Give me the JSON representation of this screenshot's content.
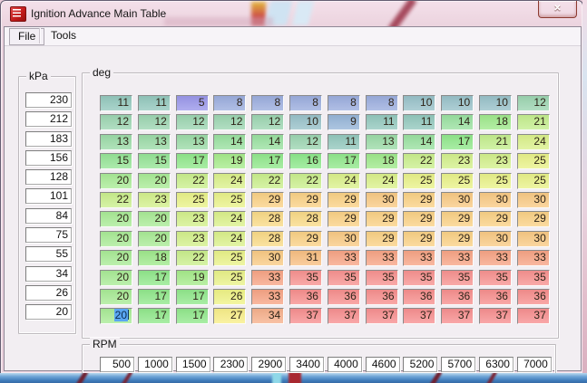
{
  "window": {
    "title": "Ignition Advance Main Table",
    "close_glyph": "✕"
  },
  "menu": {
    "items": [
      "File",
      "Tools"
    ]
  },
  "table": {
    "y_axis_label": "kPa",
    "x_axis_label": "RPM",
    "cells_unit_label": "deg",
    "kpa_values": [
      230,
      212,
      183,
      156,
      128,
      101,
      84,
      75,
      55,
      34,
      26,
      20
    ],
    "rpm_values": [
      500,
      1000,
      1500,
      2300,
      2900,
      3400,
      4000,
      4600,
      5200,
      5700,
      6300,
      7000
    ],
    "rows": [
      [
        11,
        11,
        5,
        8,
        8,
        8,
        8,
        8,
        10,
        10,
        10,
        12
      ],
      [
        12,
        12,
        12,
        12,
        12,
        10,
        9,
        11,
        11,
        14,
        18,
        21
      ],
      [
        13,
        13,
        13,
        14,
        14,
        12,
        11,
        13,
        14,
        17,
        21,
        24
      ],
      [
        15,
        15,
        17,
        19,
        17,
        16,
        17,
        18,
        22,
        23,
        23,
        25
      ],
      [
        20,
        20,
        22,
        24,
        22,
        22,
        24,
        24,
        25,
        25,
        25,
        25
      ],
      [
        22,
        23,
        25,
        25,
        29,
        29,
        29,
        30,
        29,
        30,
        30,
        30
      ],
      [
        20,
        20,
        23,
        24,
        28,
        28,
        29,
        29,
        29,
        29,
        29,
        29
      ],
      [
        20,
        20,
        23,
        24,
        28,
        29,
        30,
        29,
        29,
        29,
        30,
        30
      ],
      [
        20,
        18,
        22,
        25,
        30,
        31,
        33,
        33,
        33,
        33,
        33,
        33
      ],
      [
        20,
        17,
        19,
        25,
        33,
        35,
        35,
        35,
        35,
        35,
        35,
        35
      ],
      [
        20,
        17,
        17,
        26,
        33,
        36,
        36,
        36,
        36,
        36,
        36,
        36
      ],
      [
        20,
        17,
        17,
        27,
        34,
        37,
        37,
        37,
        37,
        37,
        37,
        37
      ]
    ],
    "selected_cell": {
      "row": 11,
      "col": 0,
      "value": 20
    },
    "value_colors": {
      "5": "#9a97ea",
      "8": "#9badde",
      "9": "#96b5d8",
      "10": "#98c1c9",
      "11": "#93c8bd",
      "12": "#9cd5b1",
      "13": "#9bdba7",
      "14": "#99e0a0",
      "15": "#95e496",
      "16": "#8de88b",
      "17": "#91e88c",
      "18": "#9fe98c",
      "19": "#a6eb8b",
      "20": "#a9eb96",
      "21": "#c4ee8e",
      "22": "#caef8d",
      "23": "#d3f08c",
      "24": "#dbf18b",
      "25": "#e9f289",
      "26": "#eff386",
      "27": "#f8ee88",
      "28": "#f9da86",
      "29": "#fad185",
      "30": "#f9ca84",
      "31": "#f8bf82",
      "33": "#f7a485",
      "34": "#f6b08c",
      "35": "#f79290",
      "36": "#f78f8e",
      "37": "#f78f90"
    },
    "selection_colors": {
      "highlight": "#5aa7f2",
      "caret": "#0d3a66"
    }
  }
}
